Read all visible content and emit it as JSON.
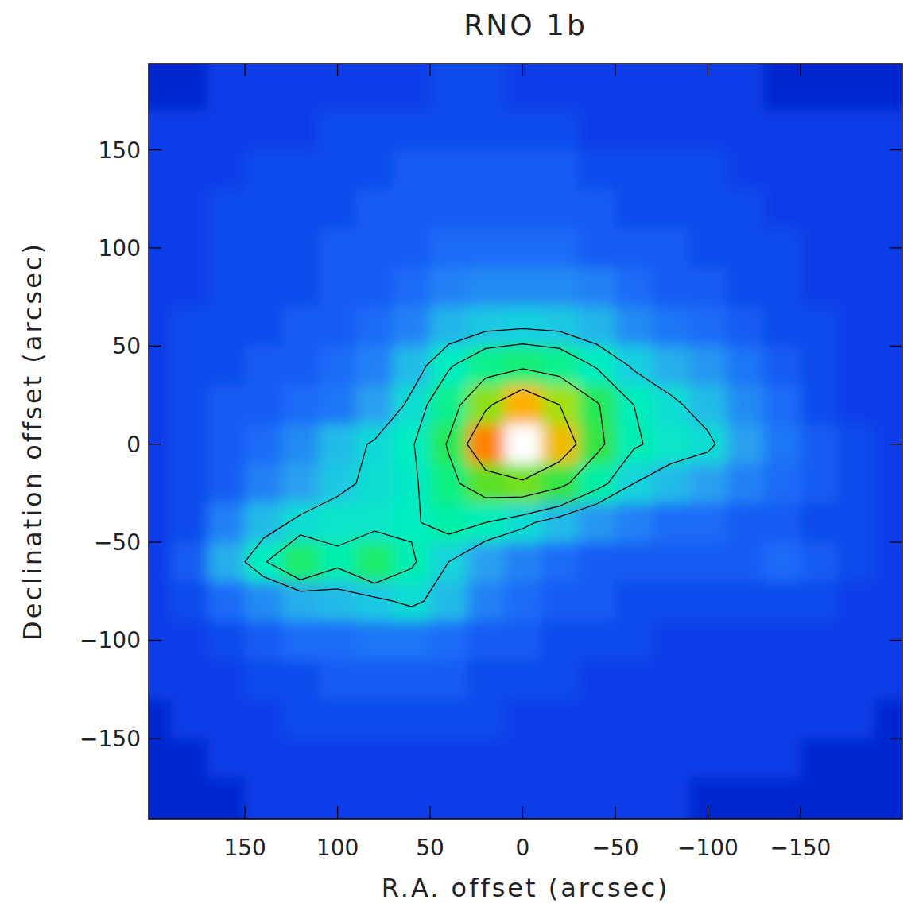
{
  "chart_data": {
    "type": "heatmap",
    "title": "RNO 1b",
    "x_label": "R.A. offset (arcsec)",
    "y_label": "Declination offset (arcsec)",
    "x": [
      200,
      180,
      160,
      140,
      120,
      100,
      80,
      60,
      40,
      20,
      0,
      -20,
      -40,
      -60,
      -80,
      -100,
      -120,
      -140,
      -160,
      -180,
      -200
    ],
    "y": [
      200,
      180,
      160,
      140,
      120,
      100,
      80,
      60,
      40,
      20,
      0,
      -20,
      -40,
      -60,
      -80,
      -100,
      -120,
      -140,
      -160,
      -180,
      -200
    ],
    "values": [
      [
        0.9,
        0.9,
        1.0,
        1.0,
        1.0,
        1.0,
        1.0,
        1.0,
        1.1,
        1.1,
        1.0,
        1.0,
        1.0,
        1.0,
        1.0,
        1.0,
        1.0,
        0.9,
        0.9,
        0.9,
        0.9
      ],
      [
        0.9,
        0.9,
        1.0,
        1.0,
        1.0,
        1.0,
        1.0,
        1.0,
        1.1,
        1.1,
        1.0,
        1.0,
        1.0,
        1.0,
        1.0,
        1.0,
        1.0,
        0.9,
        0.9,
        0.9,
        0.9
      ],
      [
        1.0,
        1.0,
        1.0,
        1.0,
        1.0,
        1.1,
        1.1,
        1.1,
        1.1,
        1.1,
        1.1,
        1.1,
        1.0,
        1.0,
        1.0,
        1.0,
        1.0,
        1.0,
        1.0,
        1.0,
        1.0
      ],
      [
        1.0,
        1.0,
        1.0,
        1.1,
        1.1,
        1.1,
        1.1,
        1.2,
        1.2,
        1.2,
        1.2,
        1.2,
        1.1,
        1.1,
        1.1,
        1.1,
        1.0,
        1.0,
        1.0,
        1.0,
        1.0
      ],
      [
        1.0,
        1.0,
        1.1,
        1.1,
        1.1,
        1.1,
        1.2,
        1.2,
        1.2,
        1.2,
        1.2,
        1.2,
        1.2,
        1.1,
        1.1,
        1.1,
        1.1,
        1.0,
        1.0,
        1.0,
        1.0
      ],
      [
        1.0,
        1.0,
        1.1,
        1.1,
        1.1,
        1.2,
        1.2,
        1.2,
        1.3,
        1.3,
        1.3,
        1.3,
        1.2,
        1.2,
        1.2,
        1.1,
        1.1,
        1.1,
        1.0,
        1.0,
        1.0
      ],
      [
        1.0,
        1.0,
        1.1,
        1.1,
        1.1,
        1.2,
        1.2,
        1.3,
        1.5,
        1.6,
        1.6,
        1.6,
        1.5,
        1.3,
        1.2,
        1.2,
        1.1,
        1.1,
        1.0,
        1.0,
        1.0
      ],
      [
        1.0,
        1.1,
        1.1,
        1.1,
        1.2,
        1.2,
        1.3,
        1.5,
        2.1,
        2.4,
        2.5,
        2.4,
        2.1,
        1.6,
        1.4,
        1.3,
        1.2,
        1.1,
        1.1,
        1.0,
        1.0
      ],
      [
        1.0,
        1.1,
        1.1,
        1.2,
        1.2,
        1.3,
        1.5,
        2.2,
        3.2,
        4.0,
        4.3,
        4.0,
        3.2,
        2.5,
        2.0,
        1.7,
        1.4,
        1.2,
        1.1,
        1.0,
        1.0
      ],
      [
        1.0,
        1.1,
        1.2,
        1.2,
        1.3,
        1.4,
        1.8,
        2.8,
        4.0,
        5.6,
        6.8,
        5.8,
        4.6,
        3.3,
        2.8,
        2.2,
        1.6,
        1.3,
        1.1,
        1.0,
        1.0
      ],
      [
        1.0,
        1.1,
        1.2,
        1.3,
        1.6,
        2.2,
        2.7,
        3.2,
        4.6,
        7.0,
        10.0,
        6.6,
        4.8,
        3.4,
        3.0,
        2.8,
        1.8,
        1.4,
        1.2,
        1.1,
        1.0
      ],
      [
        1.0,
        1.1,
        1.2,
        1.5,
        1.8,
        2.4,
        2.8,
        3.1,
        4.2,
        5.2,
        5.4,
        4.8,
        3.6,
        2.6,
        2.2,
        1.8,
        1.5,
        1.3,
        1.2,
        1.1,
        1.0
      ],
      [
        1.0,
        1.1,
        1.5,
        2.2,
        2.8,
        3.0,
        3.0,
        3.2,
        3.6,
        3.3,
        2.8,
        2.2,
        1.7,
        1.5,
        1.3,
        1.3,
        1.2,
        1.2,
        1.1,
        1.1,
        1.0
      ],
      [
        1.0,
        1.2,
        2.0,
        3.2,
        4.4,
        3.5,
        4.4,
        3.4,
        2.6,
        1.8,
        1.5,
        1.3,
        1.2,
        1.2,
        1.2,
        1.2,
        1.2,
        1.3,
        1.2,
        1.1,
        1.0
      ],
      [
        1.0,
        1.1,
        1.3,
        1.6,
        2.0,
        2.2,
        2.4,
        2.8,
        2.2,
        1.5,
        1.3,
        1.2,
        1.2,
        1.1,
        1.1,
        1.1,
        1.1,
        1.1,
        1.1,
        1.0,
        1.0
      ],
      [
        1.0,
        1.0,
        1.1,
        1.2,
        1.3,
        1.3,
        1.4,
        1.4,
        1.3,
        1.2,
        1.2,
        1.1,
        1.1,
        1.1,
        1.0,
        1.0,
        1.0,
        1.0,
        1.0,
        1.0,
        1.0
      ],
      [
        1.0,
        1.0,
        1.0,
        1.1,
        1.1,
        1.2,
        1.2,
        1.2,
        1.2,
        1.1,
        1.1,
        1.1,
        1.0,
        1.0,
        1.0,
        1.0,
        1.0,
        1.0,
        1.0,
        1.0,
        1.0
      ],
      [
        0.9,
        1.0,
        1.0,
        1.0,
        1.1,
        1.1,
        1.1,
        1.1,
        1.1,
        1.1,
        1.0,
        1.0,
        1.0,
        1.0,
        1.0,
        1.0,
        1.0,
        1.0,
        1.0,
        1.0,
        0.9
      ],
      [
        0.9,
        0.9,
        1.0,
        1.0,
        1.0,
        1.0,
        1.0,
        1.0,
        1.0,
        1.0,
        1.0,
        1.0,
        1.0,
        1.0,
        1.0,
        1.0,
        1.0,
        1.0,
        0.9,
        0.9,
        0.9
      ],
      [
        0.9,
        0.9,
        0.9,
        1.0,
        1.0,
        1.0,
        1.0,
        1.0,
        1.0,
        1.0,
        1.0,
        1.0,
        1.0,
        1.0,
        1.0,
        0.9,
        0.9,
        0.9,
        0.9,
        0.9,
        0.9
      ],
      [
        0.9,
        0.9,
        0.9,
        1.0,
        1.0,
        1.0,
        1.0,
        1.0,
        1.0,
        1.0,
        1.0,
        1.0,
        1.0,
        1.0,
        1.0,
        0.9,
        0.9,
        0.9,
        0.9,
        0.9,
        0.9
      ]
    ],
    "contour_levels": [
      2.6,
      3.3,
      4.5,
      5.8
    ],
    "xlim": [
      202,
      -205
    ],
    "ylim": [
      -191,
      194
    ],
    "xticks": [
      150,
      100,
      50,
      0,
      {
        "value": -50,
        "label": "−50"
      },
      {
        "value": -100,
        "label": "−100"
      },
      {
        "value": -150,
        "label": "−150"
      }
    ],
    "yticks": [
      {
        "value": -150,
        "label": "−150"
      },
      {
        "value": -100,
        "label": "−100"
      },
      {
        "value": -50,
        "label": "−50"
      },
      0,
      50,
      100,
      150
    ]
  }
}
